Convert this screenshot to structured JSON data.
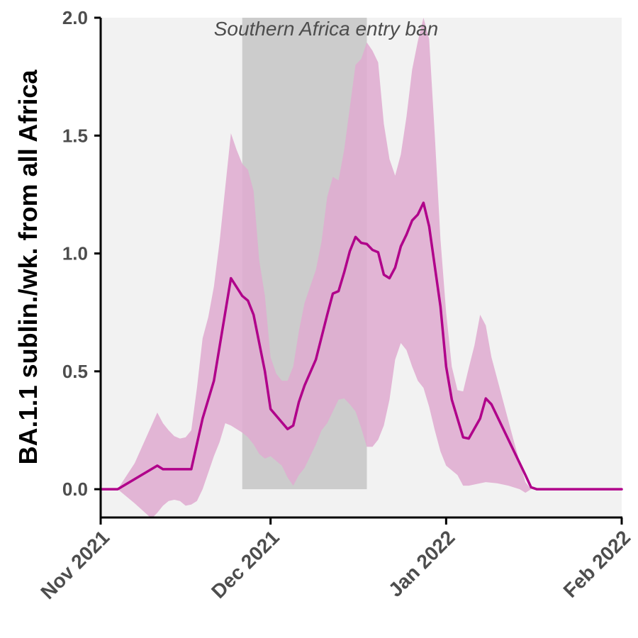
{
  "chart_data": {
    "type": "area",
    "title": "",
    "xlabel": "",
    "ylabel": "BA.1.1 sublin./wk. from all Africa",
    "xlim": [
      "2021-11-01",
      "2022-02-01"
    ],
    "ylim": [
      -0.12,
      2.0
    ],
    "x_ticks": [
      {
        "date": "2021-11-01",
        "label": "Nov 2021"
      },
      {
        "date": "2021-12-01",
        "label": "Dec 2021"
      },
      {
        "date": "2022-01-01",
        "label": "Jan 2022"
      },
      {
        "date": "2022-02-01",
        "label": "Feb 2022"
      }
    ],
    "y_ticks": [
      {
        "value": 0.0,
        "label": "0.0"
      },
      {
        "value": 0.5,
        "label": "0.5"
      },
      {
        "value": 1.0,
        "label": "1.0"
      },
      {
        "value": 1.5,
        "label": "1.5"
      },
      {
        "value": 2.0,
        "label": "2.0"
      }
    ],
    "grid": false,
    "legend": "none",
    "annotation": {
      "text": "Southern Africa entry ban",
      "start": "2021-11-26",
      "end": "2021-12-18",
      "color": "#cccccc"
    },
    "colors": {
      "line": "#b0008a",
      "ribbon": "#dfaad0",
      "panel": "#f2f2f2"
    },
    "series": [
      {
        "kind": "line",
        "points": [
          [
            "2021-11-01",
            0.0
          ],
          [
            "2021-11-02",
            0.0
          ],
          [
            "2021-11-03",
            0.0
          ],
          [
            "2021-11-04",
            0.0
          ],
          [
            "2021-11-11",
            0.1
          ],
          [
            "2021-11-12",
            0.085
          ],
          [
            "2021-11-17",
            0.085
          ],
          [
            "2021-11-19",
            0.3
          ],
          [
            "2021-11-21",
            0.46
          ],
          [
            "2021-11-24",
            0.895
          ],
          [
            "2021-11-26",
            0.82
          ],
          [
            "2021-11-27",
            0.8
          ],
          [
            "2021-11-28",
            0.74
          ],
          [
            "2021-11-30",
            0.5
          ],
          [
            "2021-12-01",
            0.34
          ],
          [
            "2021-12-04",
            0.255
          ],
          [
            "2021-12-05",
            0.27
          ],
          [
            "2021-12-06",
            0.37
          ],
          [
            "2021-12-07",
            0.44
          ],
          [
            "2021-12-09",
            0.55
          ],
          [
            "2021-12-11",
            0.74
          ],
          [
            "2021-12-12",
            0.83
          ],
          [
            "2021-12-13",
            0.84
          ],
          [
            "2021-12-14",
            0.92
          ],
          [
            "2021-12-15",
            1.01
          ],
          [
            "2021-12-16",
            1.07
          ],
          [
            "2021-12-17",
            1.045
          ],
          [
            "2021-12-18",
            1.04
          ],
          [
            "2021-12-19",
            1.015
          ],
          [
            "2021-12-20",
            1.005
          ],
          [
            "2021-12-21",
            0.91
          ],
          [
            "2021-12-22",
            0.895
          ],
          [
            "2021-12-23",
            0.94
          ],
          [
            "2021-12-24",
            1.03
          ],
          [
            "2021-12-25",
            1.08
          ],
          [
            "2021-12-26",
            1.14
          ],
          [
            "2021-12-27",
            1.165
          ],
          [
            "2021-12-28",
            1.215
          ],
          [
            "2021-12-29",
            1.115
          ],
          [
            "2021-12-31",
            0.775
          ],
          [
            "2022-01-01",
            0.52
          ],
          [
            "2022-01-02",
            0.38
          ],
          [
            "2022-01-04",
            0.22
          ],
          [
            "2022-01-05",
            0.215
          ],
          [
            "2022-01-07",
            0.3
          ],
          [
            "2022-01-08",
            0.385
          ],
          [
            "2022-01-09",
            0.36
          ],
          [
            "2022-01-11",
            0.26
          ],
          [
            "2022-01-13",
            0.16
          ],
          [
            "2022-01-15",
            0.06
          ],
          [
            "2022-01-16",
            0.008
          ],
          [
            "2022-01-17",
            0.0
          ],
          [
            "2022-02-01",
            0.0
          ]
        ]
      },
      {
        "kind": "band",
        "upper": [
          [
            "2021-11-01",
            0.0
          ],
          [
            "2021-11-04",
            0.0
          ],
          [
            "2021-11-07",
            0.11
          ],
          [
            "2021-11-11",
            0.325
          ],
          [
            "2021-11-12",
            0.28
          ],
          [
            "2021-11-13",
            0.25
          ],
          [
            "2021-11-14",
            0.225
          ],
          [
            "2021-11-15",
            0.215
          ],
          [
            "2021-11-16",
            0.22
          ],
          [
            "2021-11-17",
            0.25
          ],
          [
            "2021-11-18",
            0.43
          ],
          [
            "2021-11-19",
            0.64
          ],
          [
            "2021-11-20",
            0.73
          ],
          [
            "2021-11-21",
            0.86
          ],
          [
            "2021-11-22",
            1.05
          ],
          [
            "2021-11-23",
            1.28
          ],
          [
            "2021-11-24",
            1.51
          ],
          [
            "2021-11-25",
            1.44
          ],
          [
            "2021-11-26",
            1.38
          ],
          [
            "2021-11-27",
            1.355
          ],
          [
            "2021-11-28",
            1.265
          ],
          [
            "2021-11-29",
            0.97
          ],
          [
            "2021-11-30",
            0.82
          ],
          [
            "2021-12-01",
            0.56
          ],
          [
            "2021-12-02",
            0.49
          ],
          [
            "2021-12-03",
            0.46
          ],
          [
            "2021-12-04",
            0.46
          ],
          [
            "2021-12-05",
            0.52
          ],
          [
            "2021-12-06",
            0.67
          ],
          [
            "2021-12-07",
            0.79
          ],
          [
            "2021-12-08",
            0.86
          ],
          [
            "2021-12-09",
            0.93
          ],
          [
            "2021-12-10",
            1.05
          ],
          [
            "2021-12-11",
            1.24
          ],
          [
            "2021-12-12",
            1.325
          ],
          [
            "2021-12-13",
            1.31
          ],
          [
            "2021-12-14",
            1.44
          ],
          [
            "2021-12-15",
            1.62
          ],
          [
            "2021-12-16",
            1.8
          ],
          [
            "2021-12-17",
            1.825
          ],
          [
            "2021-12-18",
            1.895
          ],
          [
            "2021-12-19",
            1.86
          ],
          [
            "2021-12-20",
            1.81
          ],
          [
            "2021-12-21",
            1.55
          ],
          [
            "2021-12-22",
            1.4
          ],
          [
            "2021-12-23",
            1.33
          ],
          [
            "2021-12-24",
            1.42
          ],
          [
            "2021-12-25",
            1.58
          ],
          [
            "2021-12-26",
            1.78
          ],
          [
            "2021-12-27",
            1.9
          ],
          [
            "2021-12-28",
            2.0
          ],
          [
            "2021-12-29",
            1.91
          ],
          [
            "2021-12-30",
            1.5
          ],
          [
            "2021-12-31",
            1.06
          ],
          [
            "2022-01-01",
            0.75
          ],
          [
            "2022-01-02",
            0.52
          ],
          [
            "2022-01-03",
            0.42
          ],
          [
            "2022-01-04",
            0.415
          ],
          [
            "2022-01-05",
            0.515
          ],
          [
            "2022-01-06",
            0.61
          ],
          [
            "2022-01-07",
            0.74
          ],
          [
            "2022-01-08",
            0.695
          ],
          [
            "2022-01-09",
            0.56
          ],
          [
            "2022-01-11",
            0.38
          ],
          [
            "2022-01-13",
            0.2
          ],
          [
            "2022-01-15",
            0.03
          ],
          [
            "2022-01-16",
            0.0
          ],
          [
            "2022-02-01",
            0.0
          ]
        ],
        "lower": [
          [
            "2021-11-01",
            0.0
          ],
          [
            "2021-11-04",
            0.0
          ],
          [
            "2021-11-07",
            -0.06
          ],
          [
            "2021-11-10",
            -0.125
          ],
          [
            "2021-11-11",
            -0.1
          ],
          [
            "2021-11-12",
            -0.07
          ],
          [
            "2021-11-13",
            -0.05
          ],
          [
            "2021-11-14",
            -0.045
          ],
          [
            "2021-11-15",
            -0.05
          ],
          [
            "2021-11-16",
            -0.07
          ],
          [
            "2021-11-17",
            -0.065
          ],
          [
            "2021-11-18",
            -0.05
          ],
          [
            "2021-11-19",
            0.0
          ],
          [
            "2021-11-20",
            0.07
          ],
          [
            "2021-11-21",
            0.14
          ],
          [
            "2021-11-22",
            0.2
          ],
          [
            "2021-11-23",
            0.28
          ],
          [
            "2021-11-24",
            0.27
          ],
          [
            "2021-11-25",
            0.255
          ],
          [
            "2021-11-26",
            0.24
          ],
          [
            "2021-11-27",
            0.22
          ],
          [
            "2021-11-28",
            0.19
          ],
          [
            "2021-11-29",
            0.15
          ],
          [
            "2021-11-30",
            0.13
          ],
          [
            "2021-12-01",
            0.14
          ],
          [
            "2021-12-02",
            0.12
          ],
          [
            "2021-12-03",
            0.1
          ],
          [
            "2021-12-04",
            0.05
          ],
          [
            "2021-12-05",
            0.015
          ],
          [
            "2021-12-06",
            0.06
          ],
          [
            "2021-12-07",
            0.09
          ],
          [
            "2021-12-08",
            0.14
          ],
          [
            "2021-12-09",
            0.19
          ],
          [
            "2021-12-10",
            0.25
          ],
          [
            "2021-12-11",
            0.28
          ],
          [
            "2021-12-12",
            0.33
          ],
          [
            "2021-12-13",
            0.38
          ],
          [
            "2021-12-14",
            0.385
          ],
          [
            "2021-12-15",
            0.36
          ],
          [
            "2021-12-16",
            0.33
          ],
          [
            "2021-12-17",
            0.26
          ],
          [
            "2021-12-18",
            0.18
          ],
          [
            "2021-12-19",
            0.18
          ],
          [
            "2021-12-20",
            0.21
          ],
          [
            "2021-12-21",
            0.27
          ],
          [
            "2021-12-22",
            0.38
          ],
          [
            "2021-12-23",
            0.55
          ],
          [
            "2021-12-24",
            0.62
          ],
          [
            "2021-12-25",
            0.59
          ],
          [
            "2021-12-26",
            0.52
          ],
          [
            "2021-12-27",
            0.46
          ],
          [
            "2021-12-28",
            0.43
          ],
          [
            "2021-12-29",
            0.35
          ],
          [
            "2021-12-30",
            0.25
          ],
          [
            "2021-12-31",
            0.16
          ],
          [
            "2022-01-01",
            0.1
          ],
          [
            "2022-01-02",
            0.08
          ],
          [
            "2022-01-03",
            0.06
          ],
          [
            "2022-01-04",
            0.015
          ],
          [
            "2022-01-05",
            0.015
          ],
          [
            "2022-01-07",
            0.025
          ],
          [
            "2022-01-08",
            0.03
          ],
          [
            "2022-01-10",
            0.025
          ],
          [
            "2022-01-12",
            0.015
          ],
          [
            "2022-01-14",
            0.0
          ],
          [
            "2022-01-15",
            -0.015
          ],
          [
            "2022-01-16",
            0.0
          ],
          [
            "2022-02-01",
            0.0
          ]
        ]
      }
    ]
  }
}
